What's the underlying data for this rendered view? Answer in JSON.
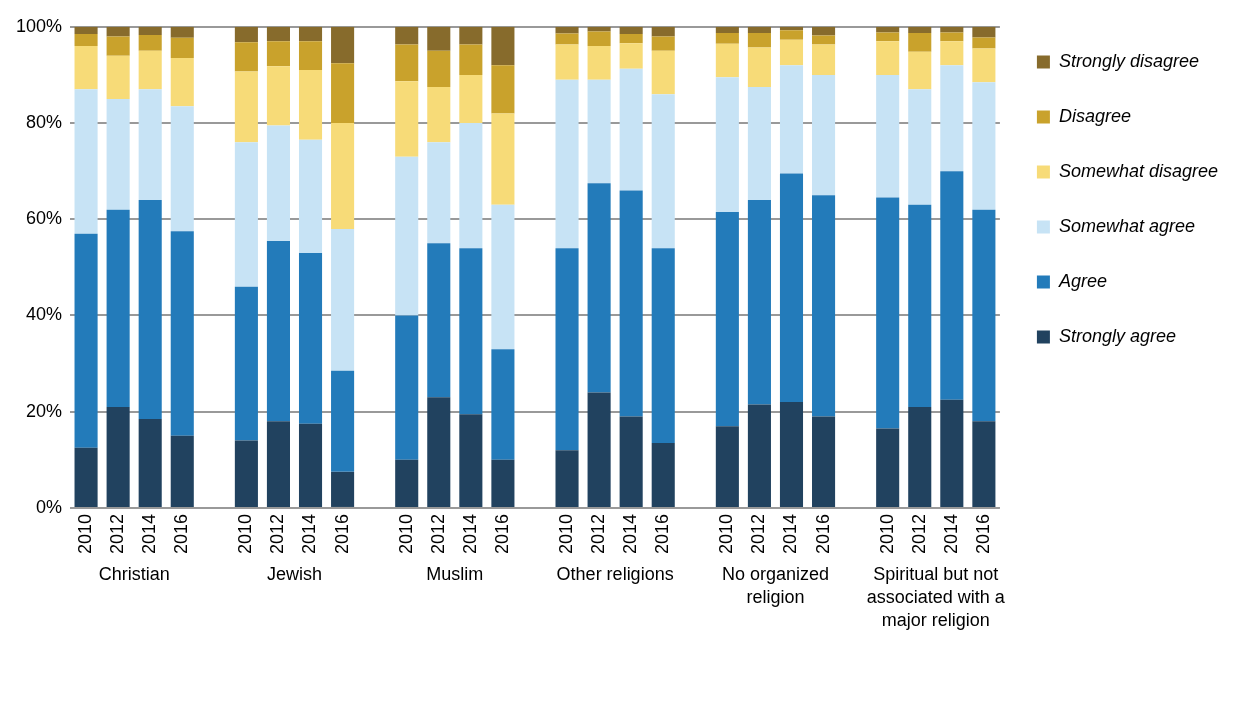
{
  "chart_data": {
    "type": "bar",
    "stacked": true,
    "grid": "y",
    "legend": "right",
    "categories": [
      "2010",
      "2012",
      "2014",
      "2016",
      null,
      "2010",
      "2012",
      "2014",
      "2016",
      null,
      "2010",
      "2012",
      "2014",
      "2016",
      null,
      "2010",
      "2012",
      "2014",
      "2016",
      null,
      "2010",
      "2012",
      "2014",
      "2016",
      null,
      "2010",
      "2012",
      "2014",
      "2016"
    ],
    "annotations": [
      "Christian",
      "Jewish",
      "Muslim",
      "Other religions",
      "No organized religion",
      "Spiritual but not associated with a major religion"
    ],
    "ylim": [
      0,
      100
    ],
    "yticks": [
      {
        "value": 0,
        "label": "0%"
      },
      {
        "value": 20,
        "label": "20%"
      },
      {
        "value": 40,
        "label": "40%"
      },
      {
        "value": 60,
        "label": "60%"
      },
      {
        "value": 80,
        "label": "80%"
      },
      {
        "value": 100,
        "label": "100%"
      }
    ],
    "series": [
      {
        "name": "Strongly agree",
        "color": "#21425f",
        "values": [
          12.5,
          21,
          18.5,
          15,
          null,
          14,
          18,
          17.5,
          7.5,
          null,
          10,
          23,
          19.5,
          10,
          null,
          12,
          24,
          19,
          13.5,
          null,
          17,
          21.5,
          22,
          19,
          null,
          16.5,
          21,
          22.5,
          18
        ]
      },
      {
        "name": "Agree",
        "color": "#237bba",
        "values": [
          44.5,
          41,
          45.5,
          42.5,
          null,
          32,
          37.5,
          35.5,
          21,
          null,
          30,
          32,
          34.5,
          23,
          null,
          42,
          43.5,
          47,
          40.5,
          null,
          44.5,
          42.5,
          47.5,
          46,
          null,
          48,
          42,
          47.5,
          44
        ]
      },
      {
        "name": "Somewhat agree",
        "color": "#c7e3f5",
        "values": [
          30,
          23,
          23,
          26,
          null,
          30,
          24,
          23.5,
          29.5,
          null,
          33,
          21,
          26,
          30,
          null,
          35,
          21.5,
          25.3,
          32,
          null,
          28,
          23.5,
          22.5,
          25,
          null,
          25.5,
          24,
          22,
          26.5
        ]
      },
      {
        "name": "Somewhat disagree",
        "color": "#f7db78",
        "values": [
          9,
          9,
          8,
          10,
          null,
          14.7,
          12.3,
          14.5,
          22,
          null,
          15.7,
          11.5,
          10,
          19,
          null,
          7.3,
          7,
          5.3,
          9,
          null,
          7,
          8.2,
          5.3,
          6.3,
          null,
          7,
          7.8,
          5,
          7
        ]
      },
      {
        "name": "Disagree",
        "color": "#c9a22c",
        "values": [
          2.5,
          4,
          3.3,
          4.2,
          null,
          6.1,
          5.2,
          6,
          12.4,
          null,
          7.6,
          7.5,
          6.3,
          10,
          null,
          2.3,
          3,
          1.9,
          3,
          null,
          2.2,
          3,
          2,
          1.9,
          null,
          1.8,
          3.9,
          1.8,
          2.3
        ]
      },
      {
        "name": "Strongly disagree",
        "color": "#876b2c",
        "values": [
          1.5,
          2,
          1.7,
          2.3,
          null,
          3.2,
          3,
          3,
          7.6,
          null,
          3.7,
          5,
          3.7,
          8,
          null,
          1.4,
          1,
          1.5,
          2,
          null,
          1.3,
          1.3,
          0.7,
          1.8,
          null,
          1.2,
          1.3,
          1.2,
          2.2
        ]
      }
    ]
  }
}
